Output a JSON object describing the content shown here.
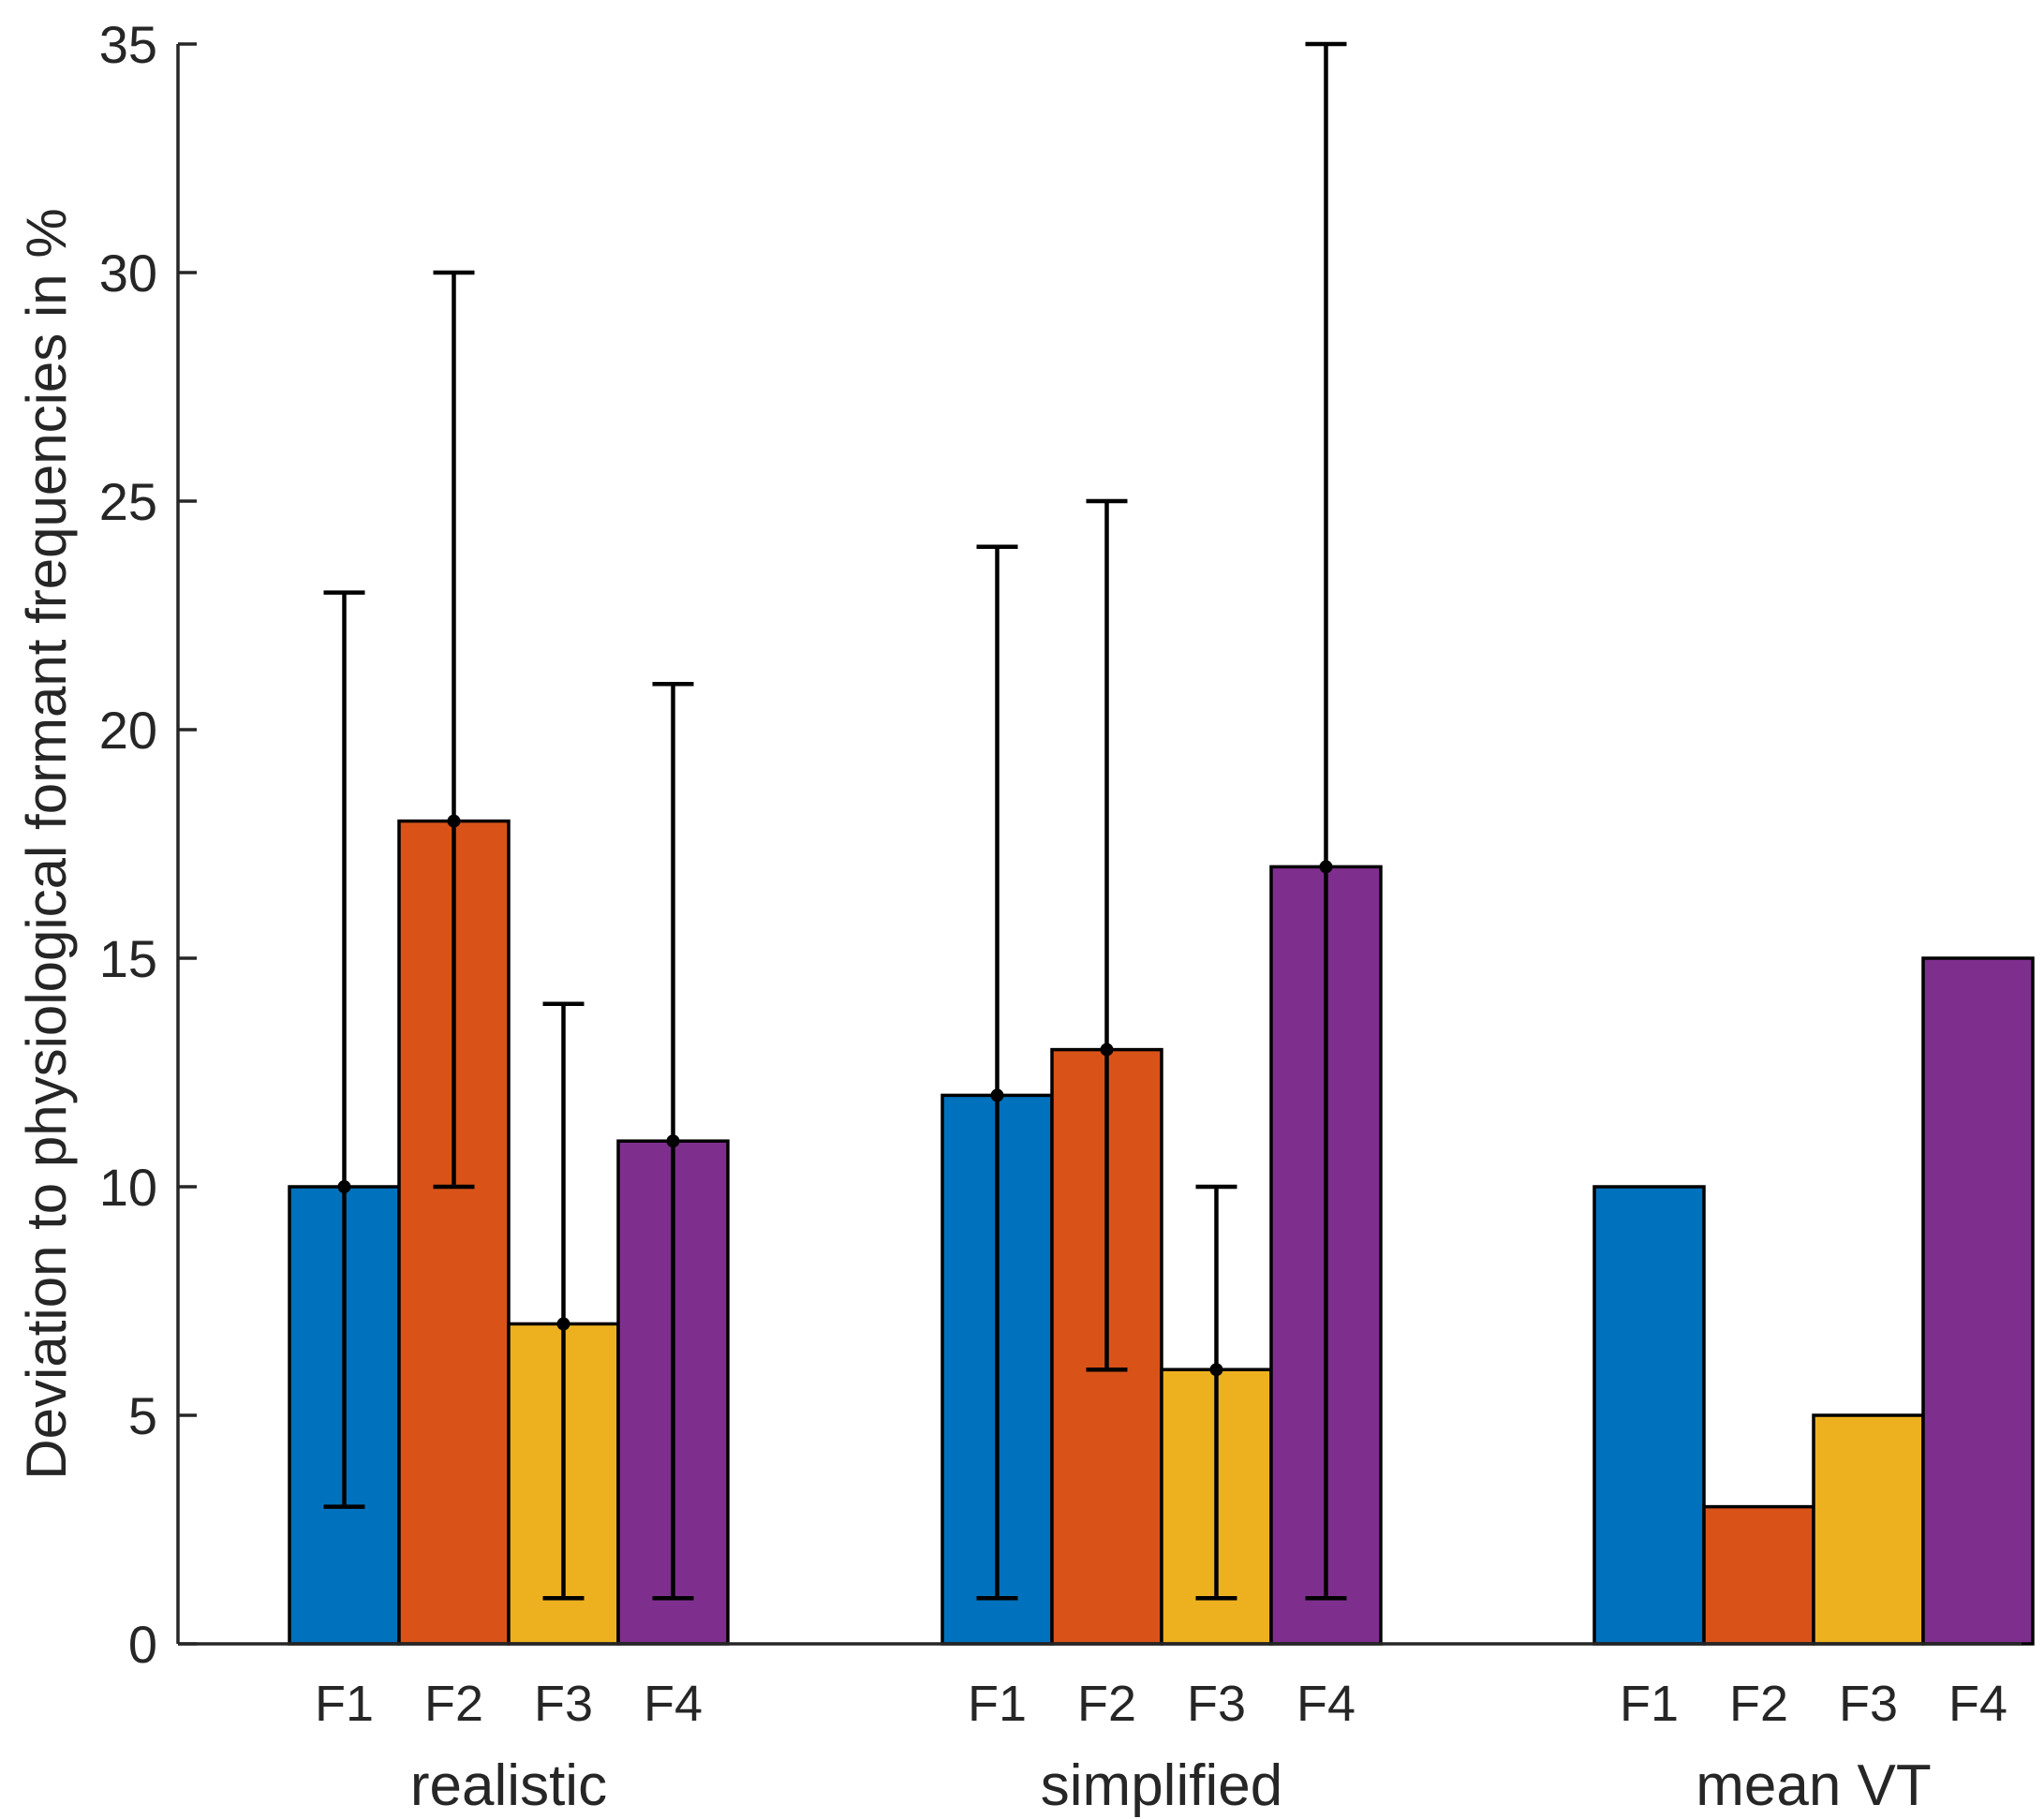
{
  "chart_data": {
    "type": "bar",
    "ylabel": "Deviation to physiological formant frequencies in %",
    "ylim": [
      0,
      35
    ],
    "yticks": [
      0,
      5,
      10,
      15,
      20,
      25,
      30,
      35
    ],
    "series_names": [
      "F1",
      "F2",
      "F3",
      "F4"
    ],
    "colors": [
      "#0072BD",
      "#D95319",
      "#EDB120",
      "#7E2F8E"
    ],
    "groups": [
      {
        "name": "realistic",
        "values": [
          10,
          18,
          7,
          11
        ],
        "err_low": [
          3,
          10,
          1,
          1
        ],
        "err_high": [
          23,
          30,
          14,
          21
        ]
      },
      {
        "name": "simplified",
        "values": [
          12,
          13,
          6,
          17
        ],
        "err_low": [
          1,
          6,
          1,
          1
        ],
        "err_high": [
          24,
          25,
          10,
          35
        ]
      },
      {
        "name": "mean VT",
        "values": [
          10,
          3,
          5,
          15
        ],
        "err_low": null,
        "err_high": null
      }
    ]
  }
}
